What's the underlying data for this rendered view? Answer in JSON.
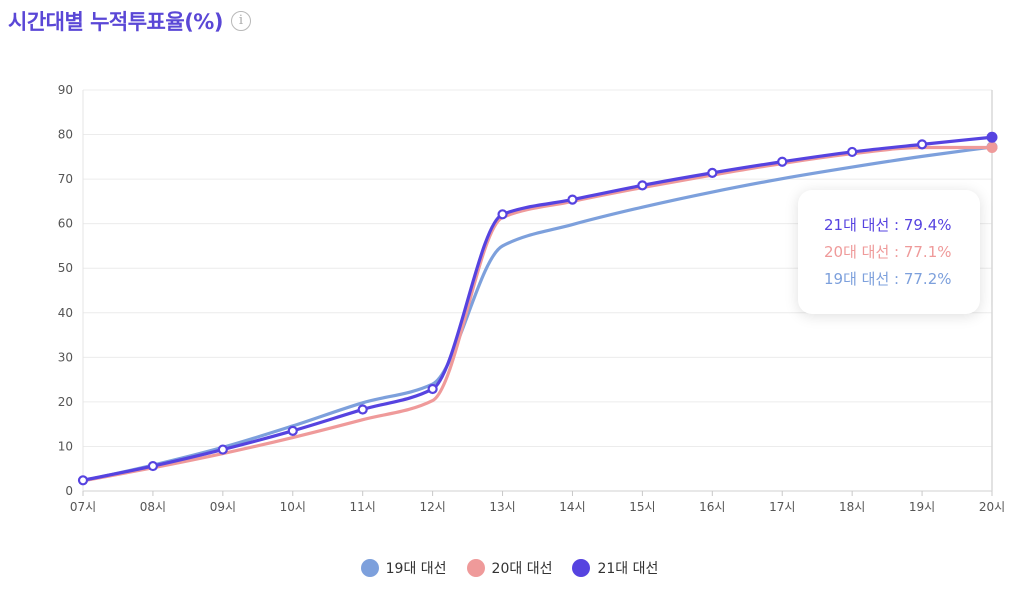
{
  "header": {
    "title": "시간대별 누적투표율(%)",
    "info_icon": "i"
  },
  "tooltip": {
    "rows": [
      {
        "label": "21대 대선 : 79.4%",
        "color": "#5643e0"
      },
      {
        "label": "20대 대선 : 77.1%",
        "color": "#ef9a9a"
      },
      {
        "label": "19대 대선 : 77.2%",
        "color": "#7da0dc"
      }
    ]
  },
  "legend": {
    "items": [
      {
        "label": "19대 대선",
        "color": "#7da0dc"
      },
      {
        "label": "20대 대선",
        "color": "#ef9a9a"
      },
      {
        "label": "21대 대선",
        "color": "#5643e0"
      }
    ]
  },
  "chart_data": {
    "type": "line",
    "title": "시간대별 누적투표율(%)",
    "xlabel": "",
    "ylabel": "",
    "categories": [
      "07시",
      "08시",
      "09시",
      "10시",
      "11시",
      "12시",
      "13시",
      "14시",
      "15시",
      "16시",
      "17시",
      "18시",
      "19시",
      "20시"
    ],
    "ylim": [
      0,
      90
    ],
    "yticks": [
      0,
      10,
      20,
      30,
      40,
      50,
      60,
      70,
      80,
      90
    ],
    "grid": true,
    "legend_position": "bottom",
    "series": [
      {
        "name": "19대 대선",
        "color": "#7da0dc",
        "markers": false,
        "values": [
          2.3,
          5.8,
          9.8,
          14.6,
          19.8,
          24.0,
          55.0,
          59.8,
          63.7,
          67.1,
          70.1,
          72.7,
          75.1,
          77.2
        ]
      },
      {
        "name": "20대 대선",
        "color": "#ef9a9a",
        "markers": false,
        "values": [
          2.3,
          5.2,
          8.4,
          12.0,
          16.0,
          20.3,
          61.4,
          65.0,
          68.1,
          70.9,
          73.5,
          75.7,
          77.1,
          77.1
        ]
      },
      {
        "name": "21대 대선",
        "color": "#5643e0",
        "markers": true,
        "values": [
          2.4,
          5.6,
          9.3,
          13.5,
          18.3,
          22.9,
          62.1,
          65.4,
          68.6,
          71.4,
          73.9,
          76.1,
          77.8,
          79.4
        ]
      }
    ]
  }
}
